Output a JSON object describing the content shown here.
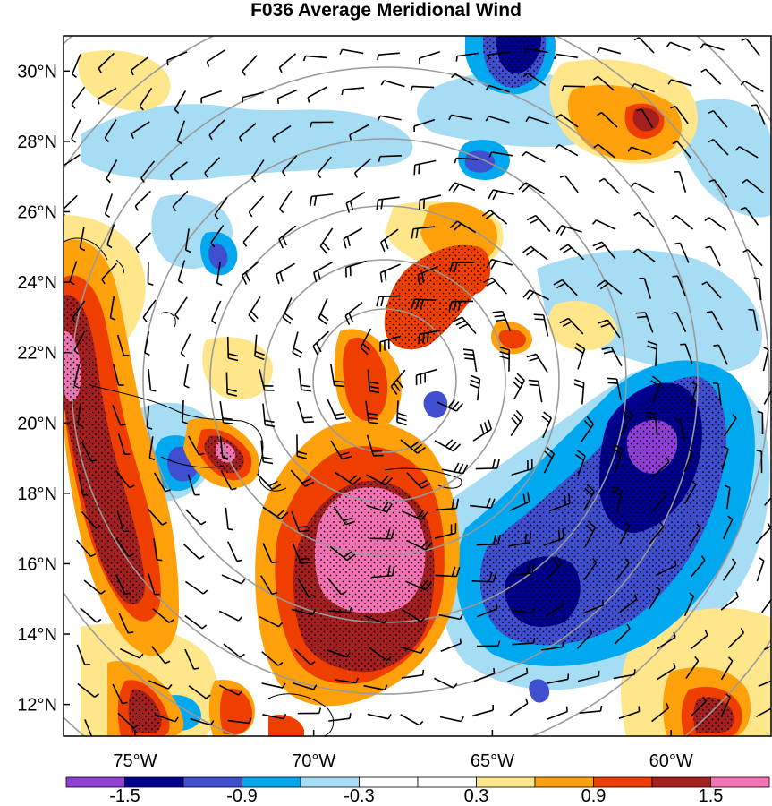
{
  "chart_data": {
    "type": "heatmap",
    "title": "F036 Average Meridional Wind",
    "projection": "map with lat/lon axes and concentric grey range rings",
    "x_axis": {
      "ticks": [
        -75,
        -70,
        -65,
        -60
      ],
      "tick_labels": [
        "75°W",
        "70°W",
        "65°W",
        "60°W"
      ],
      "range": [
        -77.0,
        -57.2
      ]
    },
    "y_axis": {
      "ticks": [
        12,
        14,
        16,
        18,
        20,
        22,
        24,
        26,
        28,
        30
      ],
      "tick_labels": [
        "12°N",
        "14°N",
        "16°N",
        "18°N",
        "20°N",
        "22°N",
        "24°N",
        "26°N",
        "28°N",
        "30°N"
      ],
      "range": [
        11.1,
        31.0
      ]
    },
    "colorbar": {
      "levels": [
        -1.8,
        -1.5,
        -1.2,
        -0.9,
        -0.6,
        -0.3,
        0,
        0.3,
        0.6,
        0.9,
        1.2,
        1.5,
        1.8
      ],
      "labeled_levels": [
        "-1.5",
        "-0.9",
        "-0.3",
        "0.3",
        "0.9",
        "1.5"
      ],
      "colors": [
        "#8f3fd6",
        "#00008f",
        "#3f4fcf",
        "#00a8ef",
        "#a6ddf5",
        "#ffffff",
        "#ffffff",
        "#ffe68a",
        "#ffa10a",
        "#ee3f00",
        "#a41f1f",
        "#f573b4"
      ]
    },
    "stippling": "dots over regions where |value| exceeds about 1.2",
    "features": [
      {
        "name": "positive maximum",
        "lon": -68.0,
        "lat": 16.6,
        "value": 1.8
      },
      {
        "name": "negative minimum",
        "lon": -60.3,
        "lat": 19.1,
        "value": -1.8
      },
      {
        "name": "positive band",
        "lon": -75.5,
        "lat": 17.5,
        "value": 1.5
      },
      {
        "name": "positive band north",
        "lon": -66.0,
        "lat": 23.5,
        "value": 1.2
      },
      {
        "name": "negative band",
        "lon": -62.5,
        "lat": 15.5,
        "value": -1.5
      },
      {
        "name": "negative center north",
        "lon": -64.0,
        "lat": 30.5,
        "value": -1.5
      }
    ],
    "range_rings": {
      "center_lon": -66.4,
      "center_lat": 21.1,
      "count": 7
    }
  }
}
